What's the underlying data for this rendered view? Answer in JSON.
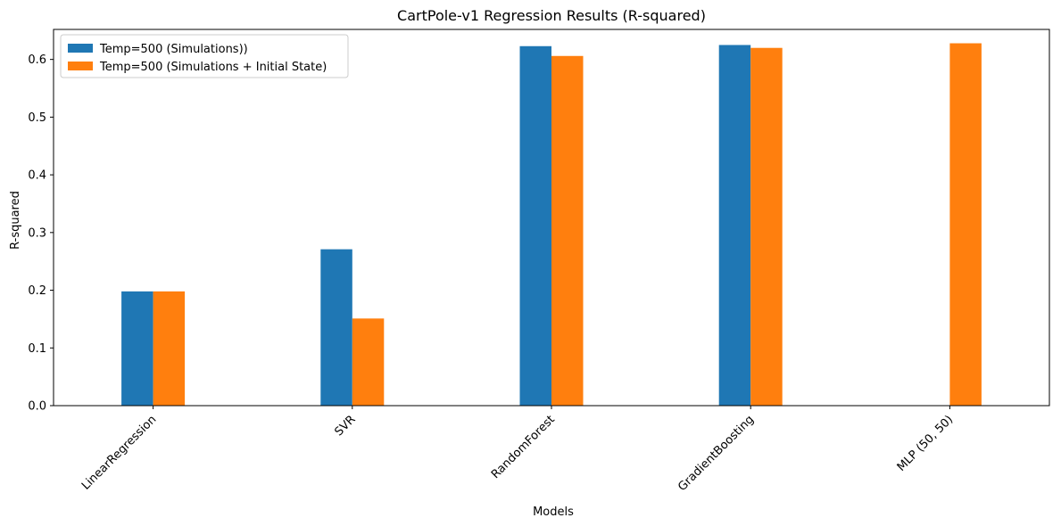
{
  "chart_data": {
    "type": "bar",
    "title": "CartPole-v1 Regression Results (R-squared)",
    "xlabel": "Models",
    "ylabel": "R-squared",
    "categories": [
      "LinearRegression",
      "SVR",
      "RandomForest",
      "GradientBoosting",
      "MLP (50, 50)"
    ],
    "series": [
      {
        "name": "Temp=500 (Simulations))",
        "color": "#1f77b4",
        "values": [
          0.198,
          0.271,
          0.623,
          0.625,
          null
        ]
      },
      {
        "name": "Temp=500 (Simulations + Initial State)",
        "color": "#ff7f0e",
        "values": [
          0.198,
          0.151,
          0.606,
          0.62,
          0.628
        ]
      }
    ],
    "ylim": [
      0,
      0.652
    ],
    "yticks": [
      "0.0",
      "0.1",
      "0.2",
      "0.3",
      "0.4",
      "0.5",
      "0.6"
    ],
    "grid": false,
    "legend_position": "top-left"
  }
}
